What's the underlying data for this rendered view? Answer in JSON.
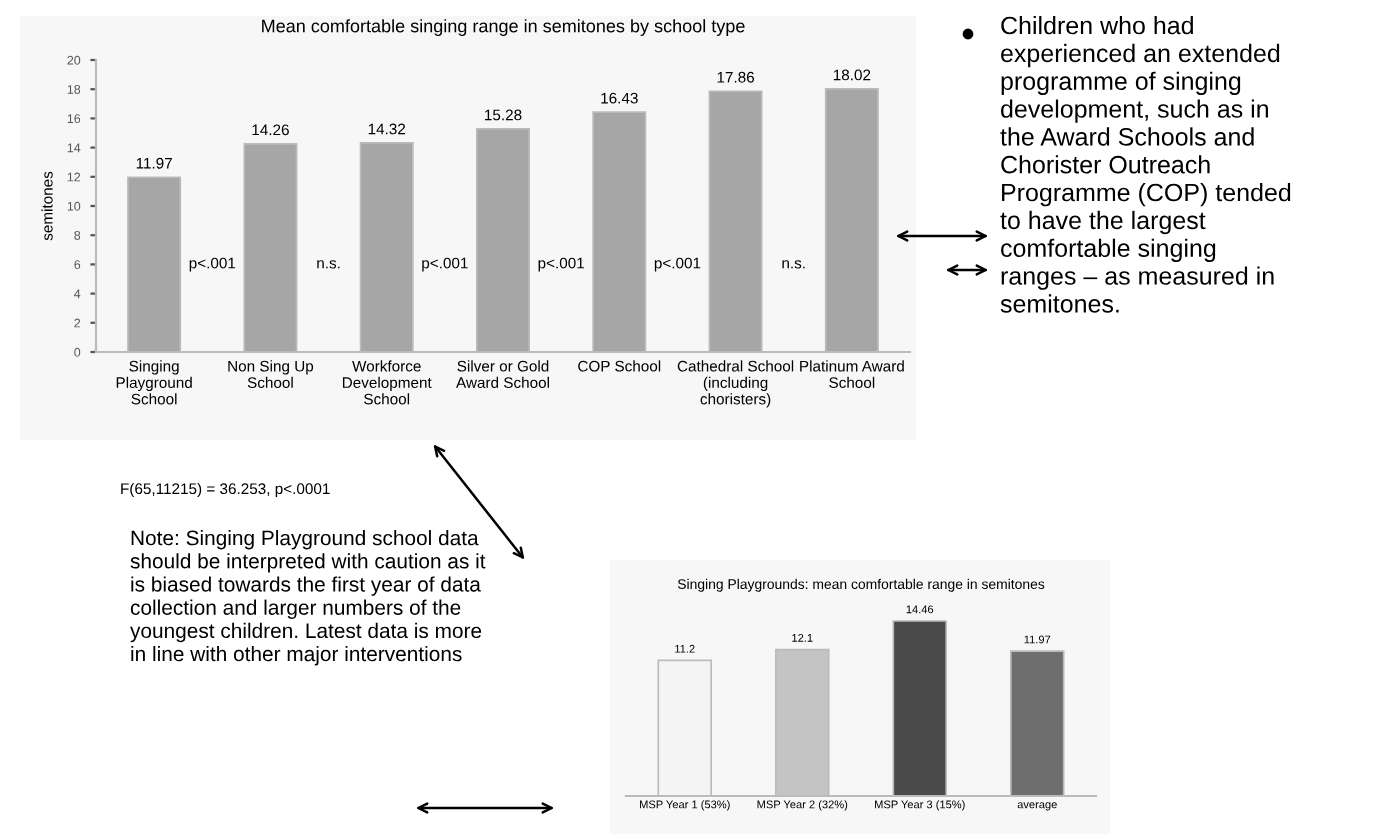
{
  "chart_data": [
    {
      "type": "bar",
      "title": "Mean comfortable singing range in semitones by school type",
      "ylabel": "semitones",
      "categories": [
        "Singing\nPlayground\nSchool",
        "Non Sing Up\nSchool",
        "Workforce\nDevelopment\nSchool",
        "Silver or Gold\nAward School",
        "COP School",
        "Cathedral School\n(including\nchoristers)",
        "Platinum Award\nSchool"
      ],
      "values": [
        11.97,
        14.26,
        14.32,
        15.28,
        16.43,
        17.86,
        18.02
      ],
      "color": "#a6a6a6",
      "ylim": [
        0,
        20
      ],
      "yticks": [
        0,
        2,
        4,
        6,
        8,
        10,
        12,
        14,
        16,
        18,
        20
      ],
      "grid": false,
      "data_labels": true,
      "annotations": [
        "p<.001",
        "n.s.",
        "p<.001",
        "p<.001",
        "p<.001",
        "n.s.",
        "F(65,11215) = 36.253, p<.0001",
        "Children who had\nexperienced an extended\nprogramme of singing\ndevelopment, such as in\nthe Award Schools and\nChorister Outreach\nProgramme (COP) tended\nto have the largest\ncomfortable singing\nranges – as measured in\nsemitones.",
        "Note: Singing Playground school data\nshould be interpreted with caution as it\nis biased towards the first year of data\ncollection and larger numbers of the\nyoungest children. Latest data is more\nin line with other major interventions"
      ]
    },
    {
      "type": "bar",
      "title": "Singing Playgrounds: mean comfortable range in semitones",
      "categories": [
        "MSP Year 1 (53%)",
        "MSP Year 2 (32%)",
        "MSP Year 3 (15%)",
        "average"
      ],
      "values": [
        11.2,
        12.1,
        14.46,
        11.97
      ],
      "colors": [
        "#f4f4f4",
        "#c4c4c4",
        "#4a4a4a",
        "#6e6e6e"
      ],
      "data_labels": true,
      "tick_labels": "x"
    }
  ]
}
